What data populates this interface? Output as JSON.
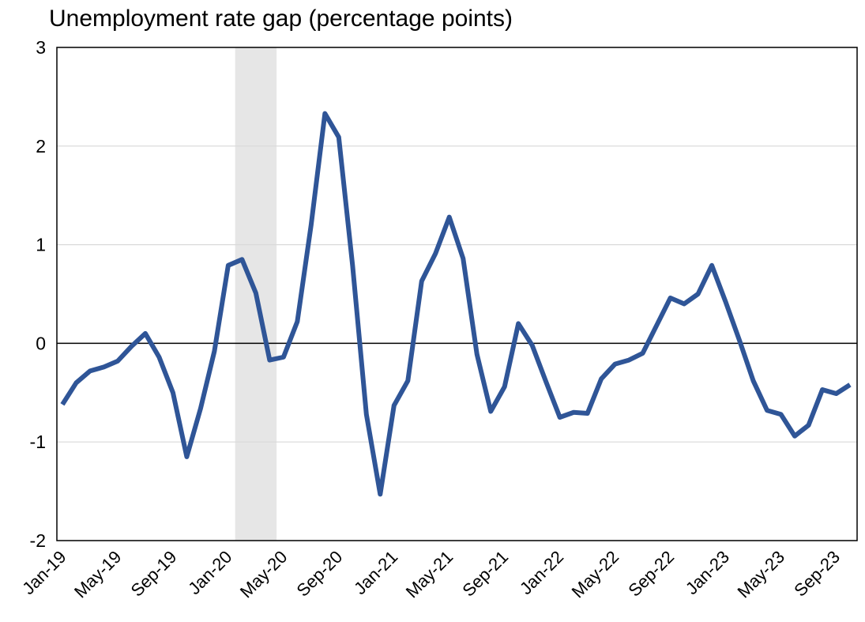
{
  "chart_data": {
    "type": "line",
    "title": "Unemployment rate gap (percentage points)",
    "categories": [
      "Jan-19",
      null,
      null,
      null,
      "May-19",
      null,
      null,
      null,
      "Sep-19",
      null,
      null,
      null,
      "Jan-20",
      null,
      null,
      null,
      "May-20",
      null,
      null,
      null,
      "Sep-20",
      null,
      null,
      null,
      "Jan-21",
      null,
      null,
      null,
      "May-21",
      null,
      null,
      null,
      "Sep-21",
      null,
      null,
      null,
      "Jan-22",
      null,
      null,
      null,
      "May-22",
      null,
      null,
      null,
      "Sep-22",
      null,
      null,
      null,
      "Jan-23",
      null,
      null,
      null,
      "May-23",
      null,
      null,
      null,
      "Sep-23",
      null
    ],
    "series": [
      {
        "color": "#2f5597",
        "values": [
          -0.62,
          -0.4,
          -0.28,
          -0.24,
          -0.18,
          -0.03,
          0.1,
          -0.14,
          -0.5,
          -1.15,
          -0.66,
          -0.08,
          0.79,
          0.85,
          0.51,
          -0.17,
          -0.14,
          0.22,
          1.2,
          2.33,
          2.09,
          0.79,
          -0.72,
          -1.53,
          -0.63,
          -0.38,
          0.63,
          0.91,
          1.28,
          0.86,
          -0.11,
          -0.69,
          -0.44,
          0.2,
          -0.02,
          -0.39,
          -0.75,
          -0.7,
          -0.71,
          -0.36,
          -0.21,
          -0.17,
          -0.1,
          0.18,
          0.46,
          0.4,
          0.5,
          0.79,
          0.42,
          0.03,
          -0.38,
          -0.68,
          -0.72,
          -0.94,
          -0.83,
          -0.47,
          -0.51,
          -0.42
        ]
      }
    ],
    "shaded_region": {
      "start": 12.5,
      "end": 15.5,
      "color": "#e6e6e6"
    },
    "ylim": [
      -2,
      3
    ],
    "yticks": [
      -2,
      -1,
      0,
      1,
      2,
      3
    ],
    "grid": true
  }
}
